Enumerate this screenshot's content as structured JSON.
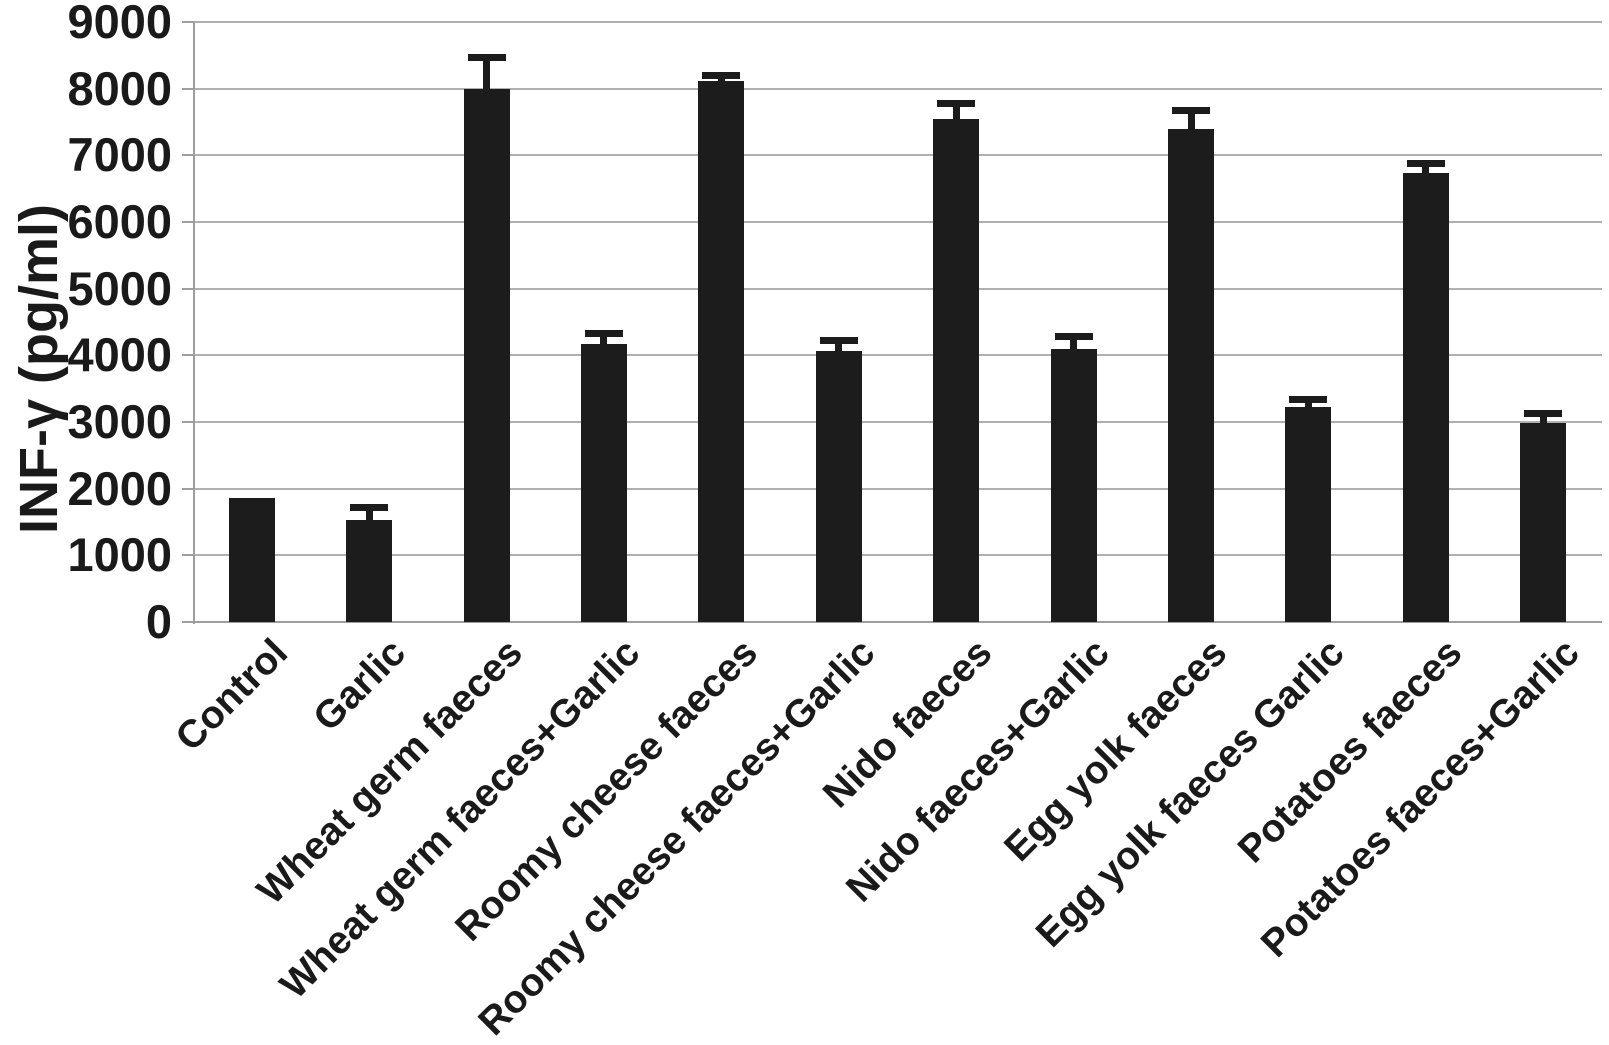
{
  "figure": {
    "background": "#ffffff"
  },
  "chart_data": {
    "type": "bar",
    "title": "",
    "xlabel": "",
    "ylabel": "INF-γ (pg/ml)",
    "categories": [
      "Control",
      "Garlic",
      "Wheat germ faeces",
      "Wheat germ faeces+Garlic",
      "Roomy cheese faeces",
      "Roomy cheese faeces+Garlic",
      "Nido faeces",
      "Nido faeces+Garlic",
      "Egg yolk faeces",
      "Egg yolk faeces Garlic",
      "Potatoes faeces",
      "Potatoes faeces+Garlic"
    ],
    "values": [
      1860,
      1530,
      8000,
      4170,
      8110,
      4060,
      7540,
      4100,
      7400,
      3230,
      6740,
      2990
    ],
    "errors": [
      0,
      200,
      480,
      160,
      90,
      170,
      250,
      190,
      280,
      110,
      150,
      140
    ],
    "error_bar_style": "upper-whisker-with-cap",
    "ylim": [
      0,
      9000
    ],
    "ytick_step": 1000,
    "ytick_labels": [
      "0",
      "1000",
      "2000",
      "3000",
      "4000",
      "5000",
      "6000",
      "7000",
      "8000",
      "9000"
    ],
    "grid": "horizontal",
    "legend": "none",
    "bar_color": "#1c1c1c",
    "error_color": "#1c1c1c",
    "gridline_color": "#b0b0b0",
    "axis_color": "#9e9e9e",
    "text_color": "#1a1a1a"
  }
}
